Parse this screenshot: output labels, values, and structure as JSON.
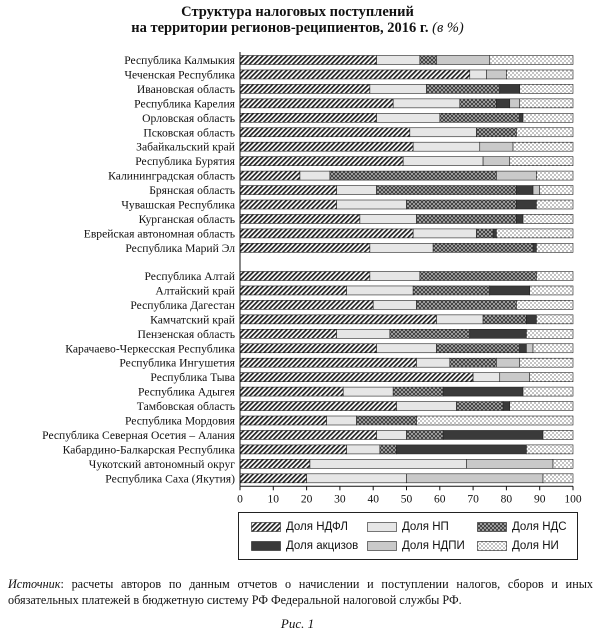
{
  "title_line1": "Структура налоговых поступлений",
  "title_line2": "на территории регионов-реципиентов, 2016 г.",
  "title_unit": "(в %)",
  "source_label": "Источник",
  "source_text": ": расчеты авторов по данным отчетов о начислении и поступлении налогов, сборов и иных обязательных платежей в бюджетную систему РФ Федеральной налоговой службы РФ.",
  "figure_caption": "Рис. 1",
  "chart_data": {
    "type": "bar",
    "orientation": "horizontal",
    "stacked": true,
    "xlim": [
      0,
      100
    ],
    "xticks": [
      "0",
      "10",
      "20",
      "30",
      "40",
      "50",
      "60",
      "70",
      "80",
      "90",
      "100"
    ],
    "grid": false,
    "legend_position": "bottom-right",
    "groups": [
      {
        "categories": [
          "Республика Калмыкия",
          "Чеченская Республика",
          "Ивановская область",
          "Республика Карелия",
          "Орловская область",
          "Псковская область",
          "Забайкальский край",
          "Республика Бурятия",
          "Калининградская область",
          "Брянская область",
          "Чувашская Республика",
          "Курганская область",
          "Еврейская автономная область",
          "Республика Марий Эл"
        ]
      },
      {
        "categories": [
          "Республика Алтай",
          "Алтайский край",
          "Республика Дагестан",
          "Камчатский край",
          "Пензенская область",
          "Карачаево-Черкесская Республика",
          "Республика Ингушетия",
          "Республика Тыва",
          "Республика Адыгея",
          "Тамбовская область",
          "Республика Мордовия",
          "Республика Северная Осетия – Алания",
          "Кабардино-Балкарская Республика",
          "Чукотский автономный округ",
          "Республика Саха (Якутия)"
        ]
      }
    ],
    "series": [
      {
        "name": "Доля НДФЛ",
        "pattern": "hatch-dense",
        "values": [
          41,
          69,
          39,
          46,
          41,
          51,
          52,
          49,
          18,
          29,
          29,
          36,
          52,
          39,
          39,
          32,
          40,
          59,
          29,
          41,
          53,
          70,
          31,
          47,
          26,
          41,
          32,
          21,
          20
        ]
      },
      {
        "name": "Доля НП",
        "pattern": "light-gray",
        "values": [
          13,
          5,
          17,
          20,
          19,
          20,
          20,
          24,
          9,
          12,
          21,
          17,
          19,
          19,
          15,
          20,
          13,
          14,
          16,
          18,
          10,
          8,
          15,
          18,
          9,
          9,
          10,
          47,
          30
        ]
      },
      {
        "name": "Доля НДС",
        "pattern": "crosshatch",
        "values": [
          5,
          0,
          22,
          11,
          24,
          12,
          0,
          0,
          50,
          42,
          33,
          30,
          5,
          30,
          35,
          23,
          30,
          13,
          24,
          25,
          14,
          0,
          15,
          14,
          18,
          11,
          5,
          0,
          0
        ]
      },
      {
        "name": "Доля акцизов",
        "pattern": "dark",
        "values": [
          0,
          0,
          6,
          4,
          1,
          0,
          0,
          0,
          0,
          5,
          6,
          2,
          1,
          1,
          0,
          12,
          0,
          3,
          17,
          2,
          0,
          0,
          24,
          2,
          0,
          30,
          39,
          0,
          0
        ]
      },
      {
        "name": "Доля НДПИ",
        "pattern": "medium-gray",
        "values": [
          16,
          6,
          0,
          3,
          0,
          0,
          10,
          8,
          12,
          2,
          0,
          0,
          0,
          0,
          0,
          0,
          0,
          0,
          0,
          2,
          7,
          9,
          0,
          0,
          0,
          0,
          0,
          26,
          41
        ]
      },
      {
        "name": "Доля НИ",
        "pattern": "dotted",
        "values": [
          25,
          20,
          16,
          16,
          15,
          17,
          18,
          19,
          11,
          10,
          11,
          15,
          23,
          11,
          11,
          13,
          17,
          11,
          14,
          12,
          16,
          13,
          15,
          19,
          47,
          9,
          14,
          6,
          9
        ]
      }
    ]
  }
}
